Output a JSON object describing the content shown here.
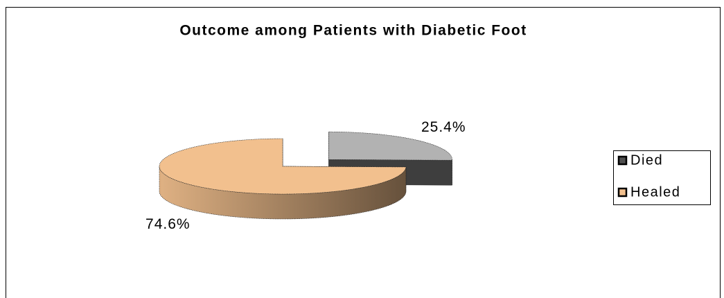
{
  "chart_data": {
    "type": "pie",
    "title": "Outcome among Patients with Diabetic Foot",
    "categories": [
      "Died",
      "Healed"
    ],
    "values": [
      25.4,
      74.6
    ],
    "value_labels": [
      "25.4%",
      "74.6%"
    ],
    "colors": [
      "#b2b2b2",
      "#f2c08e"
    ],
    "legend": "right"
  }
}
